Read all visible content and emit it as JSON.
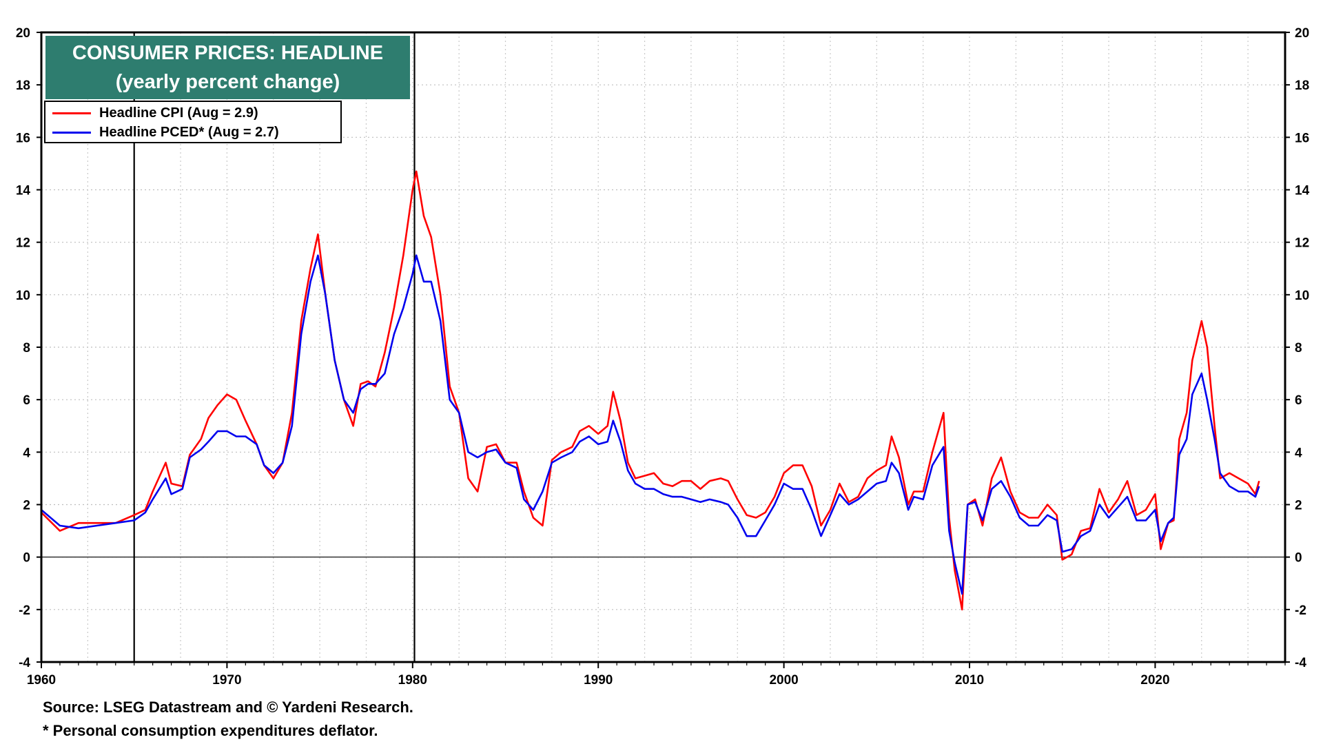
{
  "chart_data": {
    "type": "line",
    "title": "CONSUMER PRICES: HEADLINE",
    "subtitle": "(yearly percent change)",
    "ylabel": "(yearly percent change)",
    "ylim": [
      -4,
      20
    ],
    "xlim": [
      1960,
      2027
    ],
    "y_ticks": [
      -4,
      -2,
      0,
      2,
      4,
      6,
      8,
      10,
      12,
      14,
      16,
      18,
      20
    ],
    "x_ticks": [
      1960,
      1970,
      1980,
      1990,
      2000,
      2010,
      2020
    ],
    "grid": true,
    "vertical_markers": [
      1965,
      1980.1
    ],
    "zero_line": 0,
    "series": [
      {
        "name": "Headline CPI (Aug = 2.9)",
        "color": "#ff0000",
        "points": [
          [
            1960,
            1.7
          ],
          [
            1961,
            1.0
          ],
          [
            1962,
            1.3
          ],
          [
            1963,
            1.3
          ],
          [
            1964,
            1.3
          ],
          [
            1965,
            1.6
          ],
          [
            1965.6,
            1.8
          ],
          [
            1966,
            2.5
          ],
          [
            1966.7,
            3.6
          ],
          [
            1967,
            2.8
          ],
          [
            1967.6,
            2.7
          ],
          [
            1968,
            3.9
          ],
          [
            1968.6,
            4.5
          ],
          [
            1969,
            5.3
          ],
          [
            1969.5,
            5.8
          ],
          [
            1970,
            6.2
          ],
          [
            1970.5,
            6.0
          ],
          [
            1971,
            5.2
          ],
          [
            1971.6,
            4.3
          ],
          [
            1972,
            3.5
          ],
          [
            1972.5,
            3.0
          ],
          [
            1973,
            3.6
          ],
          [
            1973.5,
            5.5
          ],
          [
            1974,
            9.0
          ],
          [
            1974.5,
            11.0
          ],
          [
            1974.9,
            12.3
          ],
          [
            1975.3,
            10.0
          ],
          [
            1975.8,
            7.5
          ],
          [
            1976.3,
            6.0
          ],
          [
            1976.8,
            5.0
          ],
          [
            1977.2,
            6.6
          ],
          [
            1977.6,
            6.7
          ],
          [
            1978,
            6.5
          ],
          [
            1978.5,
            7.8
          ],
          [
            1979,
            9.5
          ],
          [
            1979.5,
            11.5
          ],
          [
            1980,
            14.0
          ],
          [
            1980.2,
            14.7
          ],
          [
            1980.6,
            13.0
          ],
          [
            1981,
            12.2
          ],
          [
            1981.5,
            10.0
          ],
          [
            1982,
            6.5
          ],
          [
            1982.5,
            5.5
          ],
          [
            1983,
            3.0
          ],
          [
            1983.5,
            2.5
          ],
          [
            1984,
            4.2
          ],
          [
            1984.5,
            4.3
          ],
          [
            1985,
            3.6
          ],
          [
            1985.6,
            3.6
          ],
          [
            1986,
            2.5
          ],
          [
            1986.5,
            1.5
          ],
          [
            1987,
            1.2
          ],
          [
            1987.5,
            3.7
          ],
          [
            1988,
            4.0
          ],
          [
            1988.6,
            4.2
          ],
          [
            1989,
            4.8
          ],
          [
            1989.5,
            5.0
          ],
          [
            1990,
            4.7
          ],
          [
            1990.5,
            5.0
          ],
          [
            1990.8,
            6.3
          ],
          [
            1991.2,
            5.2
          ],
          [
            1991.6,
            3.6
          ],
          [
            1992,
            3.0
          ],
          [
            1992.5,
            3.1
          ],
          [
            1993,
            3.2
          ],
          [
            1993.5,
            2.8
          ],
          [
            1994,
            2.7
          ],
          [
            1994.5,
            2.9
          ],
          [
            1995,
            2.9
          ],
          [
            1995.5,
            2.6
          ],
          [
            1996,
            2.9
          ],
          [
            1996.6,
            3.0
          ],
          [
            1997,
            2.9
          ],
          [
            1997.5,
            2.2
          ],
          [
            1998,
            1.6
          ],
          [
            1998.5,
            1.5
          ],
          [
            1999,
            1.7
          ],
          [
            1999.5,
            2.3
          ],
          [
            2000,
            3.2
          ],
          [
            2000.5,
            3.5
          ],
          [
            2001,
            3.5
          ],
          [
            2001.5,
            2.7
          ],
          [
            2002,
            1.2
          ],
          [
            2002.5,
            1.8
          ],
          [
            2003,
            2.8
          ],
          [
            2003.5,
            2.1
          ],
          [
            2004,
            2.3
          ],
          [
            2004.5,
            3.0
          ],
          [
            2005,
            3.3
          ],
          [
            2005.5,
            3.5
          ],
          [
            2005.8,
            4.6
          ],
          [
            2006.2,
            3.8
          ],
          [
            2006.7,
            2.0
          ],
          [
            2007,
            2.5
          ],
          [
            2007.5,
            2.5
          ],
          [
            2008,
            4.0
          ],
          [
            2008.6,
            5.5
          ],
          [
            2008.9,
            1.5
          ],
          [
            2009.2,
            -0.5
          ],
          [
            2009.6,
            -2.0
          ],
          [
            2009.9,
            2.0
          ],
          [
            2010.3,
            2.2
          ],
          [
            2010.7,
            1.2
          ],
          [
            2011.2,
            3.0
          ],
          [
            2011.7,
            3.8
          ],
          [
            2012.2,
            2.5
          ],
          [
            2012.7,
            1.7
          ],
          [
            2013.2,
            1.5
          ],
          [
            2013.7,
            1.5
          ],
          [
            2014.2,
            2.0
          ],
          [
            2014.7,
            1.6
          ],
          [
            2015,
            -0.1
          ],
          [
            2015.5,
            0.1
          ],
          [
            2016,
            1.0
          ],
          [
            2016.5,
            1.1
          ],
          [
            2017,
            2.6
          ],
          [
            2017.5,
            1.7
          ],
          [
            2018,
            2.2
          ],
          [
            2018.5,
            2.9
          ],
          [
            2019,
            1.6
          ],
          [
            2019.5,
            1.8
          ],
          [
            2020,
            2.4
          ],
          [
            2020.3,
            0.3
          ],
          [
            2020.7,
            1.3
          ],
          [
            2021,
            1.4
          ],
          [
            2021.3,
            4.5
          ],
          [
            2021.7,
            5.5
          ],
          [
            2022,
            7.5
          ],
          [
            2022.5,
            9.0
          ],
          [
            2022.8,
            8.0
          ],
          [
            2023.2,
            5.0
          ],
          [
            2023.5,
            3.0
          ],
          [
            2024,
            3.2
          ],
          [
            2024.5,
            3.0
          ],
          [
            2025,
            2.8
          ],
          [
            2025.4,
            2.4
          ],
          [
            2025.6,
            2.9
          ]
        ]
      },
      {
        "name": "Headline PCED* (Aug = 2.7)",
        "color": "#0000ee",
        "points": [
          [
            1960,
            1.8
          ],
          [
            1961,
            1.2
          ],
          [
            1962,
            1.1
          ],
          [
            1963,
            1.2
          ],
          [
            1964,
            1.3
          ],
          [
            1965,
            1.4
          ],
          [
            1965.6,
            1.7
          ],
          [
            1966,
            2.2
          ],
          [
            1966.7,
            3.0
          ],
          [
            1967,
            2.4
          ],
          [
            1967.6,
            2.6
          ],
          [
            1968,
            3.8
          ],
          [
            1968.6,
            4.1
          ],
          [
            1969,
            4.4
          ],
          [
            1969.5,
            4.8
          ],
          [
            1970,
            4.8
          ],
          [
            1970.5,
            4.6
          ],
          [
            1971,
            4.6
          ],
          [
            1971.6,
            4.3
          ],
          [
            1972,
            3.5
          ],
          [
            1972.5,
            3.2
          ],
          [
            1973,
            3.6
          ],
          [
            1973.5,
            5.0
          ],
          [
            1974,
            8.5
          ],
          [
            1974.5,
            10.5
          ],
          [
            1974.9,
            11.5
          ],
          [
            1975.3,
            10.0
          ],
          [
            1975.8,
            7.5
          ],
          [
            1976.3,
            6.0
          ],
          [
            1976.8,
            5.5
          ],
          [
            1977.2,
            6.4
          ],
          [
            1977.6,
            6.6
          ],
          [
            1978,
            6.6
          ],
          [
            1978.5,
            7.0
          ],
          [
            1979,
            8.5
          ],
          [
            1979.5,
            9.5
          ],
          [
            1980,
            10.8
          ],
          [
            1980.2,
            11.5
          ],
          [
            1980.6,
            10.5
          ],
          [
            1981,
            10.5
          ],
          [
            1981.5,
            9.0
          ],
          [
            1982,
            6.0
          ],
          [
            1982.5,
            5.5
          ],
          [
            1983,
            4.0
          ],
          [
            1983.5,
            3.8
          ],
          [
            1984,
            4.0
          ],
          [
            1984.5,
            4.1
          ],
          [
            1985,
            3.6
          ],
          [
            1985.6,
            3.4
          ],
          [
            1986,
            2.2
          ],
          [
            1986.5,
            1.8
          ],
          [
            1987,
            2.5
          ],
          [
            1987.5,
            3.6
          ],
          [
            1988,
            3.8
          ],
          [
            1988.6,
            4.0
          ],
          [
            1989,
            4.4
          ],
          [
            1989.5,
            4.6
          ],
          [
            1990,
            4.3
          ],
          [
            1990.5,
            4.4
          ],
          [
            1990.8,
            5.2
          ],
          [
            1991.2,
            4.4
          ],
          [
            1991.6,
            3.3
          ],
          [
            1992,
            2.8
          ],
          [
            1992.5,
            2.6
          ],
          [
            1993,
            2.6
          ],
          [
            1993.5,
            2.4
          ],
          [
            1994,
            2.3
          ],
          [
            1994.5,
            2.3
          ],
          [
            1995,
            2.2
          ],
          [
            1995.5,
            2.1
          ],
          [
            1996,
            2.2
          ],
          [
            1996.6,
            2.1
          ],
          [
            1997,
            2.0
          ],
          [
            1997.5,
            1.5
          ],
          [
            1998,
            0.8
          ],
          [
            1998.5,
            0.8
          ],
          [
            1999,
            1.4
          ],
          [
            1999.5,
            2.0
          ],
          [
            2000,
            2.8
          ],
          [
            2000.5,
            2.6
          ],
          [
            2001,
            2.6
          ],
          [
            2001.5,
            1.8
          ],
          [
            2002,
            0.8
          ],
          [
            2002.5,
            1.6
          ],
          [
            2003,
            2.4
          ],
          [
            2003.5,
            2.0
          ],
          [
            2004,
            2.2
          ],
          [
            2004.5,
            2.5
          ],
          [
            2005,
            2.8
          ],
          [
            2005.5,
            2.9
          ],
          [
            2005.8,
            3.6
          ],
          [
            2006.2,
            3.2
          ],
          [
            2006.7,
            1.8
          ],
          [
            2007,
            2.3
          ],
          [
            2007.5,
            2.2
          ],
          [
            2008,
            3.5
          ],
          [
            2008.6,
            4.2
          ],
          [
            2008.9,
            1.0
          ],
          [
            2009.2,
            -0.2
          ],
          [
            2009.6,
            -1.4
          ],
          [
            2009.9,
            2.0
          ],
          [
            2010.3,
            2.1
          ],
          [
            2010.7,
            1.4
          ],
          [
            2011.2,
            2.6
          ],
          [
            2011.7,
            2.9
          ],
          [
            2012.2,
            2.3
          ],
          [
            2012.7,
            1.5
          ],
          [
            2013.2,
            1.2
          ],
          [
            2013.7,
            1.2
          ],
          [
            2014.2,
            1.6
          ],
          [
            2014.7,
            1.4
          ],
          [
            2015,
            0.2
          ],
          [
            2015.5,
            0.3
          ],
          [
            2016,
            0.8
          ],
          [
            2016.5,
            1.0
          ],
          [
            2017,
            2.0
          ],
          [
            2017.5,
            1.5
          ],
          [
            2018,
            1.9
          ],
          [
            2018.5,
            2.3
          ],
          [
            2019,
            1.4
          ],
          [
            2019.5,
            1.4
          ],
          [
            2020,
            1.8
          ],
          [
            2020.3,
            0.6
          ],
          [
            2020.7,
            1.3
          ],
          [
            2021,
            1.5
          ],
          [
            2021.3,
            3.9
          ],
          [
            2021.7,
            4.5
          ],
          [
            2022,
            6.2
          ],
          [
            2022.5,
            7.0
          ],
          [
            2022.8,
            6.0
          ],
          [
            2023.2,
            4.5
          ],
          [
            2023.5,
            3.2
          ],
          [
            2024,
            2.7
          ],
          [
            2024.5,
            2.5
          ],
          [
            2025,
            2.5
          ],
          [
            2025.4,
            2.3
          ],
          [
            2025.6,
            2.7
          ]
        ]
      }
    ],
    "source": "Source: LSEG Datastream and © Yardeni Research.",
    "footnote": "* Personal consumption expenditures deflator."
  }
}
